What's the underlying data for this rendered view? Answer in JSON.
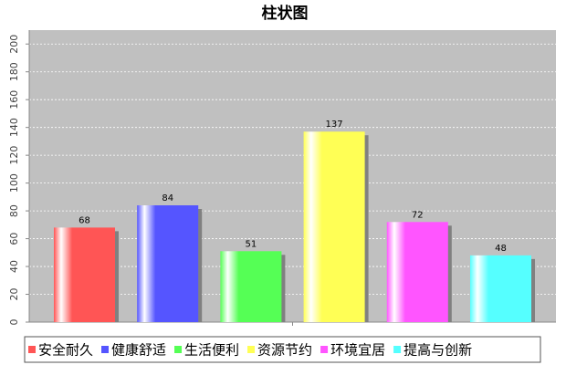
{
  "chart_data": {
    "type": "bar",
    "title": "柱状图",
    "series": [
      {
        "name": "安全耐久",
        "color": "#ff5555",
        "values": [
          68
        ]
      },
      {
        "name": "健康舒适",
        "color": "#5555ff",
        "values": [
          84
        ]
      },
      {
        "name": "生活便利",
        "color": "#55ff55",
        "values": [
          51
        ]
      },
      {
        "name": "资源节约",
        "color": "#ffff55",
        "values": [
          137
        ]
      },
      {
        "name": "环境宜居",
        "color": "#ff55ff",
        "values": [
          72
        ]
      },
      {
        "name": "提高与创新",
        "color": "#55ffff",
        "values": [
          48
        ]
      }
    ],
    "ylim": [
      0,
      210
    ],
    "yticks": [
      0,
      20,
      40,
      60,
      80,
      100,
      120,
      140,
      160,
      180,
      200
    ],
    "grid": true,
    "legend": "bottom"
  }
}
